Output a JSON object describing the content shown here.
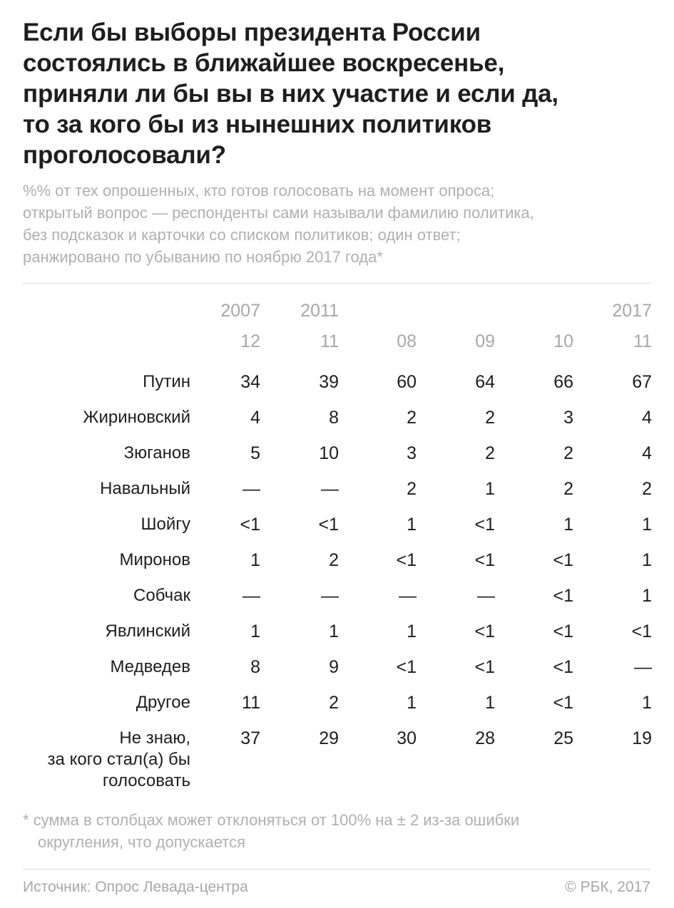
{
  "title_lines": [
    "Если бы выборы президента России",
    "состоялись в ближайшее воскресенье,",
    "приняли ли бы вы в них участие и если да,",
    "то за кого бы из нынешних политиков",
    "проголосовали?"
  ],
  "subtitle_lines": [
    "%% от тех опрошенных, кто готов голосовать на момент опроса;",
    "открытый вопрос — респонденты сами называли фамилию политика,",
    "без подсказок и карточки со списком политиков; один ответ;",
    "ранжировано по убыванию по ноябрю 2017 года*"
  ],
  "chart_data": {
    "type": "table",
    "column_years": [
      "2007",
      "2011",
      "",
      "",
      "",
      "2017"
    ],
    "column_months": [
      "12",
      "11",
      "08",
      "09",
      "10",
      "11"
    ],
    "rows": [
      {
        "label_lines": [
          "Путин"
        ],
        "values": [
          "34",
          "39",
          "60",
          "64",
          "66",
          "67"
        ]
      },
      {
        "label_lines": [
          "Жириновский"
        ],
        "values": [
          "4",
          "8",
          "2",
          "2",
          "3",
          "4"
        ]
      },
      {
        "label_lines": [
          "Зюганов"
        ],
        "values": [
          "5",
          "10",
          "3",
          "2",
          "2",
          "4"
        ]
      },
      {
        "label_lines": [
          "Навальный"
        ],
        "values": [
          "—",
          "—",
          "2",
          "1",
          "2",
          "2"
        ]
      },
      {
        "label_lines": [
          "Шойгу"
        ],
        "values": [
          "<1",
          "<1",
          "1",
          "<1",
          "1",
          "1"
        ]
      },
      {
        "label_lines": [
          "Миронов"
        ],
        "values": [
          "1",
          "2",
          "<1",
          "<1",
          "<1",
          "1"
        ]
      },
      {
        "label_lines": [
          "Собчак"
        ],
        "values": [
          "—",
          "—",
          "—",
          "—",
          "<1",
          "1"
        ]
      },
      {
        "label_lines": [
          "Явлинский"
        ],
        "values": [
          "1",
          "1",
          "1",
          "<1",
          "<1",
          "<1"
        ]
      },
      {
        "label_lines": [
          "Медведев"
        ],
        "values": [
          "8",
          "9",
          "<1",
          "<1",
          "<1",
          "—"
        ]
      },
      {
        "label_lines": [
          "Другое"
        ],
        "values": [
          "11",
          "2",
          "1",
          "1",
          "<1",
          "1"
        ]
      },
      {
        "label_lines": [
          "Не знаю,",
          "за кого стал(а) бы",
          "голосовать"
        ],
        "values": [
          "37",
          "29",
          "30",
          "28",
          "25",
          "19"
        ]
      }
    ]
  },
  "footnote_lines": [
    "* сумма в столбцах может отклоняться от 100% на ± 2 из-за ошибки",
    "округления, что допускается"
  ],
  "source": "Источник: Опрос Левада-центра",
  "copyright": "© РБК, 2017"
}
